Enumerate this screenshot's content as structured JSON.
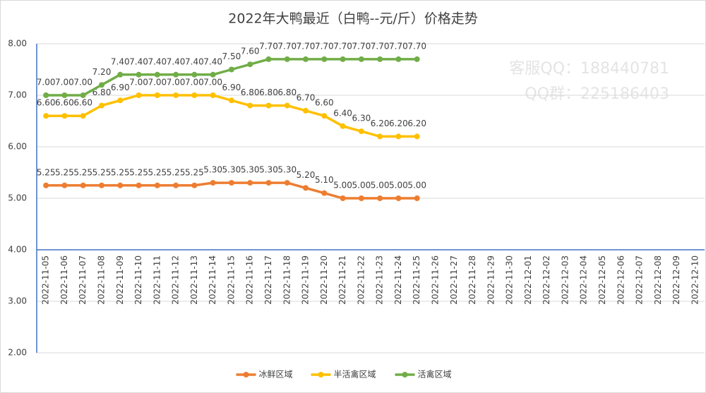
{
  "chart_data": {
    "type": "line",
    "title": "2022年大鸭最近（白鸭--元/斤）价格走势",
    "annotations": [
      "客服QQ：188440781",
      "QQ群：225186403"
    ],
    "categories": [
      "2022-11-05",
      "2022-11-06",
      "2022-11-07",
      "2022-11-08",
      "2022-11-09",
      "2022-11-10",
      "2022-11-11",
      "2022-11-12",
      "2022-11-13",
      "2022-11-14",
      "2022-11-15",
      "2022-11-16",
      "2022-11-17",
      "2022-11-18",
      "2022-11-19",
      "2022-11-20",
      "2022-11-21",
      "2022-11-22",
      "2022-11-23",
      "2022-11-24",
      "2022-11-25",
      "2022-11-26",
      "2022-11-27",
      "2022-11-28",
      "2022-11-29",
      "2022-11-30",
      "2022-12-01",
      "2022-12-02",
      "2022-12-03",
      "2022-12-04",
      "2022-12-05",
      "2022-12-06",
      "2022-12-07",
      "2022-12-08",
      "2022-12-09",
      "2022-12-10"
    ],
    "series": [
      {
        "name": "冰鲜区域",
        "color": "#ed7d31",
        "values": [
          5.25,
          5.25,
          5.25,
          5.25,
          5.25,
          5.25,
          5.25,
          5.25,
          5.25,
          5.3,
          5.3,
          5.3,
          5.3,
          5.3,
          5.2,
          5.1,
          5,
          5,
          5,
          5,
          5,
          null,
          null,
          null,
          null,
          null,
          null,
          null,
          null,
          null,
          null,
          null,
          null,
          null,
          null,
          null
        ],
        "value_labels": [
          "5.25",
          "5.25",
          "5.25",
          "5.25",
          "5.25",
          "5.25",
          "5.25",
          "5.25",
          "5.25",
          "5.30",
          "5.30",
          "5.30",
          "5.30",
          "5.30",
          "5.20",
          "5.10",
          "5.00",
          "5.00",
          "5.00",
          "5.00",
          "5.00",
          null,
          null,
          null,
          null,
          null,
          null,
          null,
          null,
          null,
          null,
          null,
          null,
          null,
          null,
          null
        ]
      },
      {
        "name": "半活禽区域",
        "color": "#ffc000",
        "values": [
          6.6,
          6.6,
          6.6,
          6.8,
          6.9,
          7,
          7,
          7,
          7,
          7,
          6.9,
          6.8,
          6.8,
          6.8,
          6.7,
          6.6,
          6.4,
          6.3,
          6.2,
          6.2,
          6.2,
          null,
          null,
          null,
          null,
          null,
          null,
          null,
          null,
          null,
          null,
          null,
          null,
          null,
          null,
          null
        ],
        "value_labels": [
          "6.60",
          "6.60",
          "6.60",
          "6.80",
          "6.90",
          "7.00",
          "7.00",
          "7.00",
          "7.00",
          "7.00",
          "6.90",
          "6.80",
          "6.80",
          "6.80",
          "6.70",
          "6.60",
          "6.40",
          "6.30",
          "6.20",
          "6.20",
          "6.20",
          null,
          null,
          null,
          null,
          null,
          null,
          null,
          null,
          null,
          null,
          null,
          null,
          null,
          null,
          null
        ]
      },
      {
        "name": "活禽区域",
        "color": "#70ad47",
        "values": [
          7,
          7,
          7,
          7.2,
          7.4,
          7.4,
          7.4,
          7.4,
          7.4,
          7.4,
          7.5,
          7.6,
          7.7,
          7.7,
          7.7,
          7.7,
          7.7,
          7.7,
          7.7,
          7.7,
          7.7,
          null,
          null,
          null,
          null,
          null,
          null,
          null,
          null,
          null,
          null,
          null,
          null,
          null,
          null,
          null
        ],
        "value_labels": [
          "7.00",
          "7.00",
          "7.00",
          "7.20",
          "7.40",
          "7.40",
          "7.40",
          "7.40",
          "7.40",
          "7.40",
          "7.50",
          "7.60",
          "7.70",
          "7.70",
          "7.70",
          "7.70",
          "7.70",
          "7.70",
          "7.70",
          "7.70",
          "7.70",
          null,
          null,
          null,
          null,
          null,
          null,
          null,
          null,
          null,
          null,
          null,
          null,
          null,
          null,
          null
        ]
      }
    ],
    "ylim": [
      2,
      8
    ],
    "yticks": [
      {
        "value": 2,
        "label": "2.00"
      },
      {
        "value": 3,
        "label": "3.00"
      },
      {
        "value": 4,
        "label": "4.00"
      },
      {
        "value": 5,
        "label": "5.00"
      },
      {
        "value": 6,
        "label": "6.00"
      },
      {
        "value": 7,
        "label": "7.00"
      },
      {
        "value": 8,
        "label": "8.00"
      }
    ],
    "x_axis_crossing": 4,
    "grid": true,
    "legend": "bottom"
  }
}
